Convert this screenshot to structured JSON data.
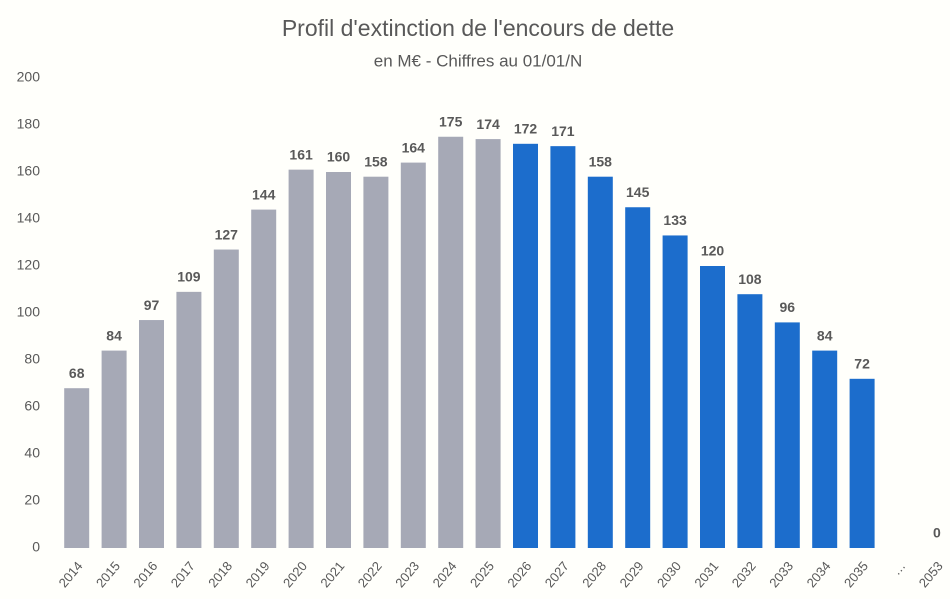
{
  "chart_data": {
    "type": "bar",
    "title": "Profil d'extinction de l'encours de dette",
    "subtitle": "en M€  - Chiffres au 01/01/N",
    "categories": [
      "2014",
      "2015",
      "2016",
      "2017",
      "2018",
      "2019",
      "2020",
      "2021",
      "2022",
      "2023",
      "2024",
      "2025",
      "2026",
      "2027",
      "2028",
      "2029",
      "2030",
      "2031",
      "2032",
      "2033",
      "2034",
      "2035",
      "…",
      "2053"
    ],
    "values": [
      68,
      84,
      97,
      109,
      127,
      144,
      161,
      160,
      158,
      164,
      175,
      174,
      172,
      171,
      158,
      145,
      133,
      120,
      108,
      96,
      84,
      72,
      null,
      0
    ],
    "colors": [
      "#a6a9b6",
      "#a6a9b6",
      "#a6a9b6",
      "#a6a9b6",
      "#a6a9b6",
      "#a6a9b6",
      "#a6a9b6",
      "#a6a9b6",
      "#a6a9b6",
      "#a6a9b6",
      "#a6a9b6",
      "#a6a9b6",
      "#1c6dcc",
      "#1c6dcc",
      "#1c6dcc",
      "#1c6dcc",
      "#1c6dcc",
      "#1c6dcc",
      "#1c6dcc",
      "#1c6dcc",
      "#1c6dcc",
      "#1c6dcc",
      "#1c6dcc",
      "#1c6dcc"
    ],
    "ylim": [
      0,
      200
    ],
    "yticks": [
      0,
      20,
      40,
      60,
      80,
      100,
      120,
      140,
      160,
      180,
      200
    ],
    "grid": false
  }
}
